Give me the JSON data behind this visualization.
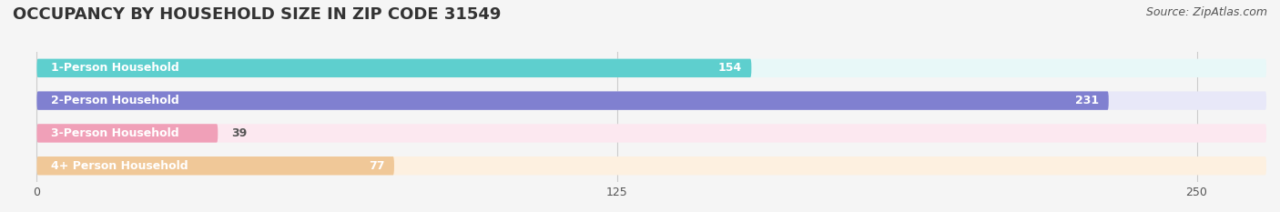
{
  "title": "OCCUPANCY BY HOUSEHOLD SIZE IN ZIP CODE 31549",
  "source": "Source: ZipAtlas.com",
  "categories": [
    "1-Person Household",
    "2-Person Household",
    "3-Person Household",
    "4+ Person Household"
  ],
  "values": [
    154,
    231,
    39,
    77
  ],
  "bar_colors": [
    "#5ecfce",
    "#8080d0",
    "#f0a0b8",
    "#f0c898"
  ],
  "bar_bg_colors": [
    "#e8f8f8",
    "#e8e8f8",
    "#fce8f0",
    "#fdf0e0"
  ],
  "xlim": [
    -5,
    265
  ],
  "xticks": [
    0,
    125,
    250
  ],
  "title_fontsize": 13,
  "source_fontsize": 9,
  "label_fontsize": 9,
  "value_fontsize": 9,
  "background_color": "#f5f5f5",
  "bar_height": 0.55
}
